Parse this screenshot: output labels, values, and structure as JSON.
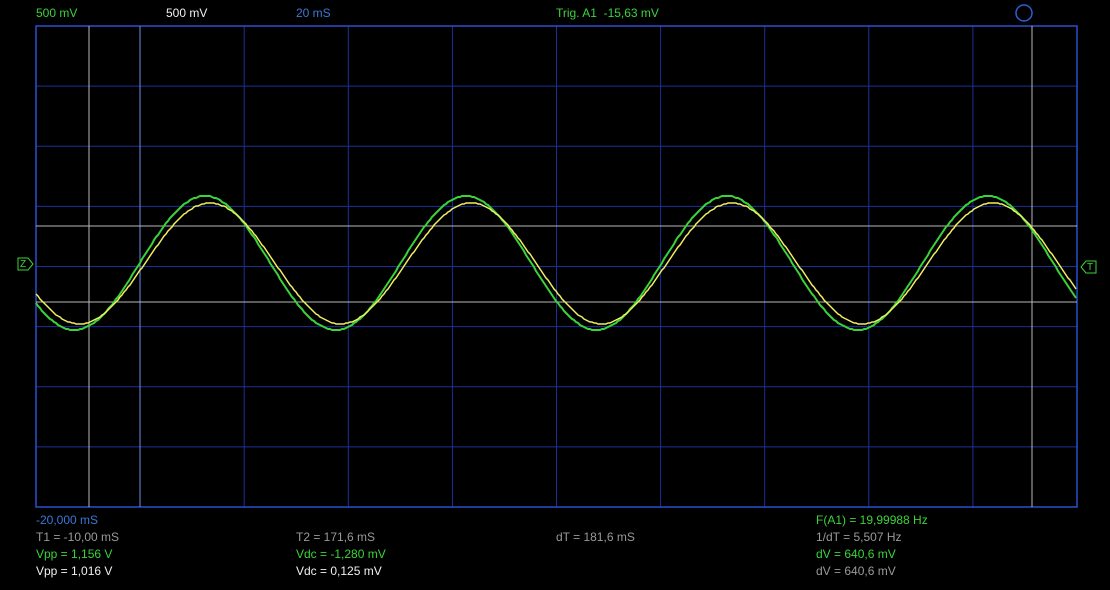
{
  "header": {
    "ch1_scale": "500 mV",
    "ch2_scale": "500 mV",
    "timebase": "20 mS",
    "trigger": "Trig. A1  -15,63 mV"
  },
  "footer": {
    "offset": "-20,000 mS",
    "frequency": "F(A1) = 19,99988 Hz",
    "cursors": {
      "t1": "T1 = -10,00 mS",
      "t2": "T2 = 171,6 mS",
      "dt": "dT = 181,6 mS",
      "inv_dt": "1/dT = 5,507 Hz"
    },
    "ch1": {
      "vpp": "Vpp = 1,156 V",
      "vdc": "Vdc = -1,280 mV",
      "dv": "dV = 640,6 mV"
    },
    "ch2": {
      "vpp": "Vpp = 1,016 V",
      "vdc": "Vdc = 0,125 mV",
      "dv": "dV = 640,6 mV"
    }
  },
  "markers": {
    "zero": "Z",
    "trigger": "T"
  }
}
